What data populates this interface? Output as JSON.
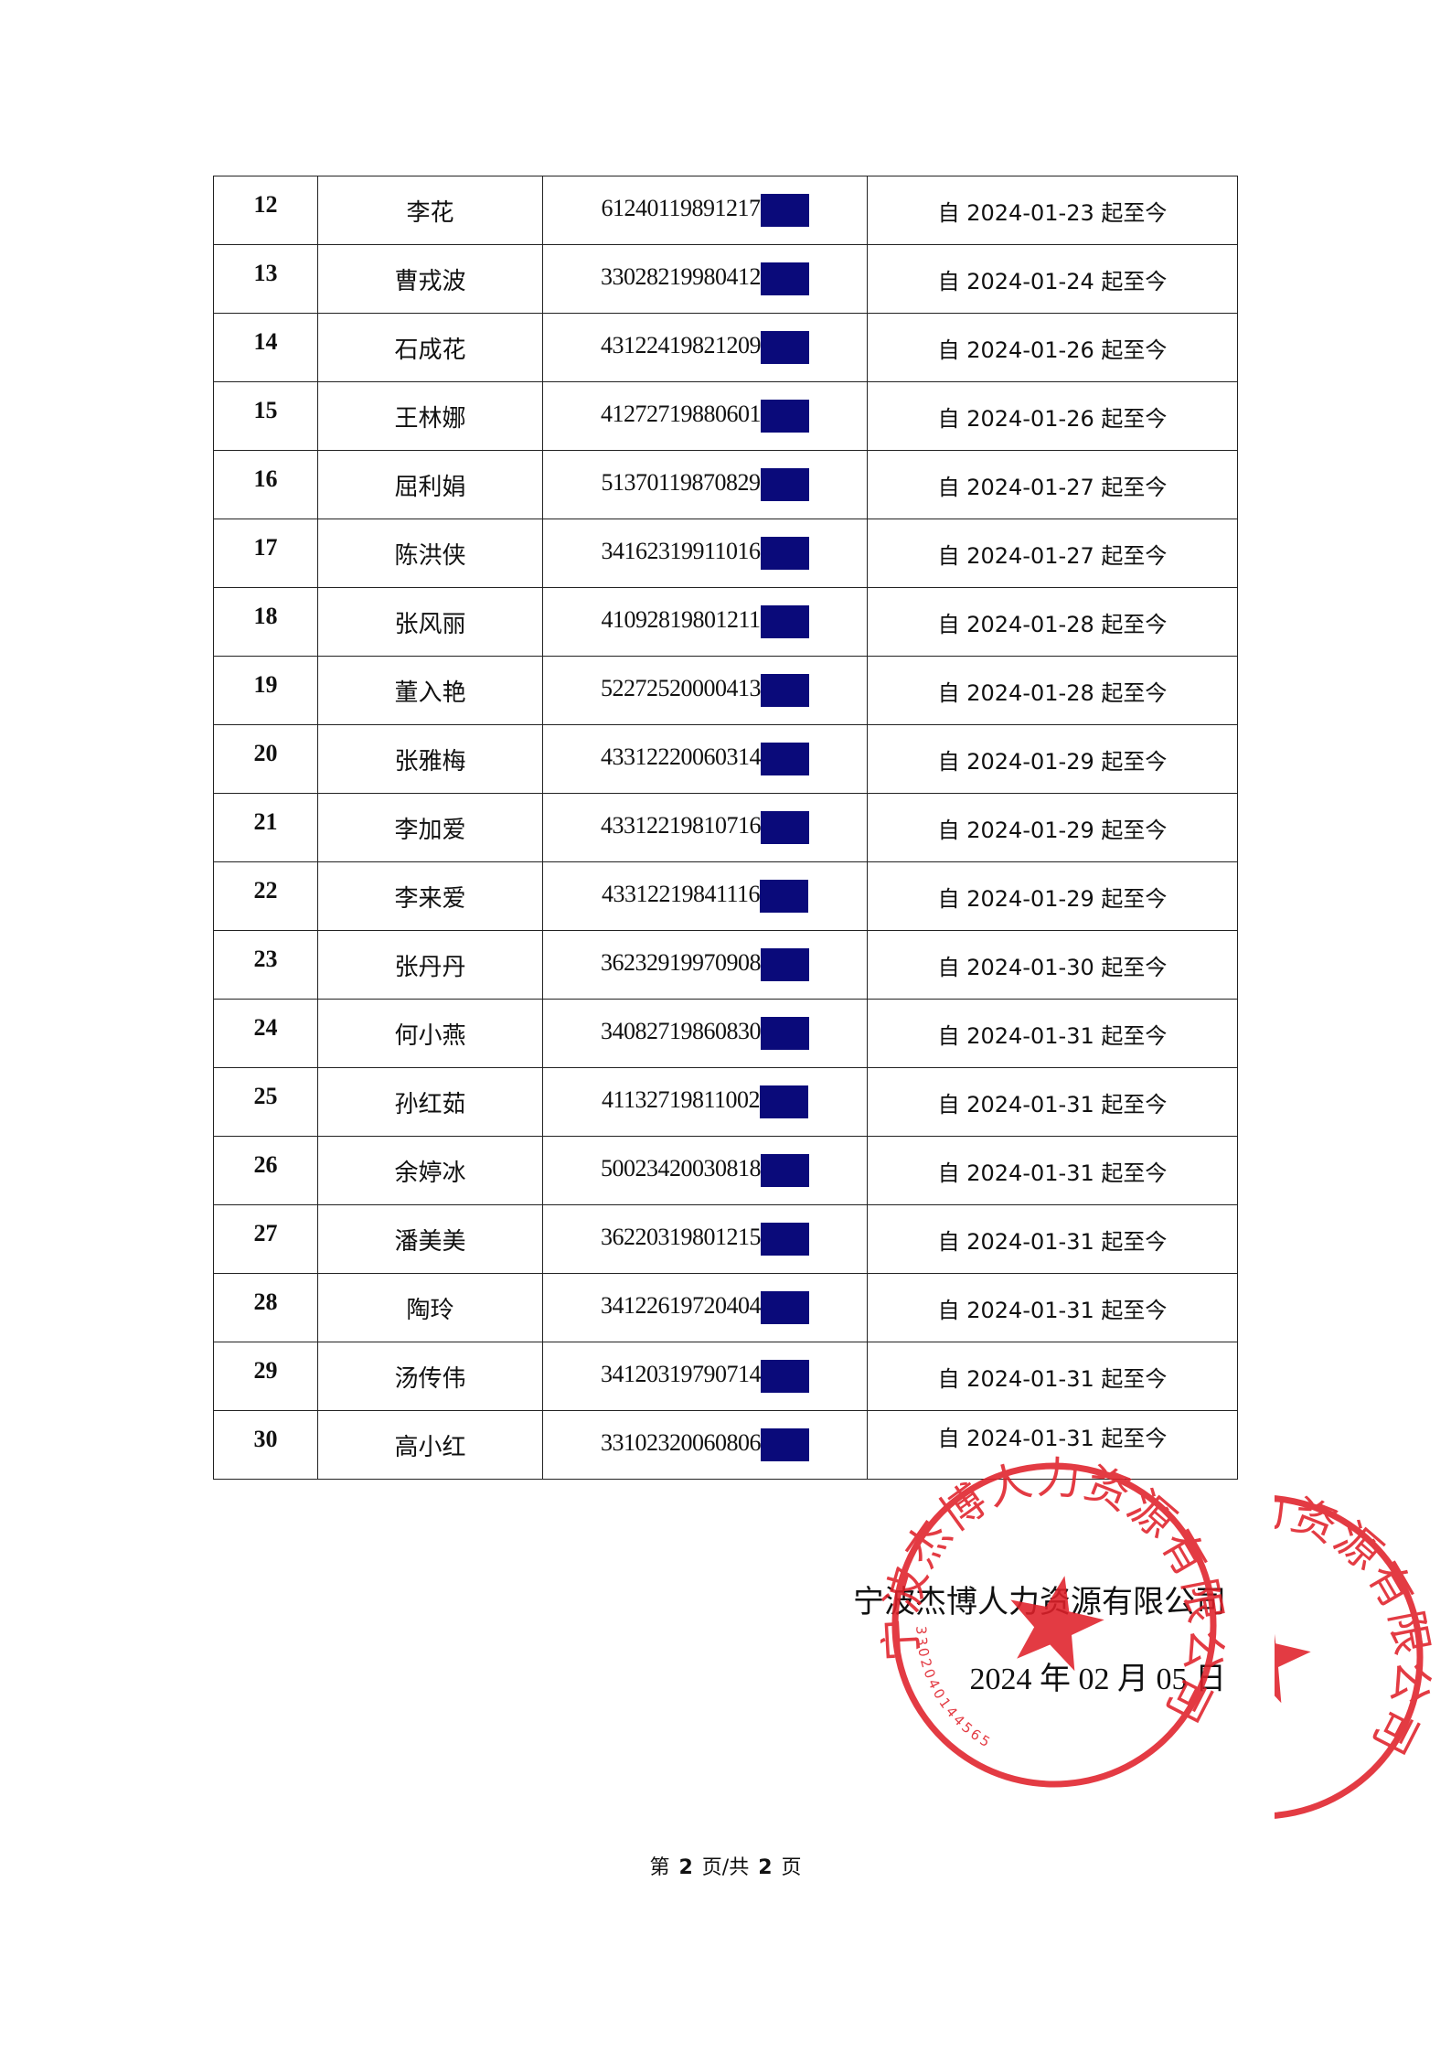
{
  "rows": [
    {
      "no": "12",
      "name": "李花",
      "id": "61240119891217",
      "date": "自 2024-01-23 起至今"
    },
    {
      "no": "13",
      "name": "曹戎波",
      "id": "33028219980412",
      "date": "自 2024-01-24 起至今"
    },
    {
      "no": "14",
      "name": "石成花",
      "id": "43122419821209",
      "date": "自 2024-01-26 起至今"
    },
    {
      "no": "15",
      "name": "王林娜",
      "id": "41272719880601",
      "date": "自 2024-01-26 起至今"
    },
    {
      "no": "16",
      "name": "屈利娟",
      "id": "51370119870829",
      "date": "自 2024-01-27 起至今"
    },
    {
      "no": "17",
      "name": "陈洪侠",
      "id": "34162319911016",
      "date": "自 2024-01-27 起至今"
    },
    {
      "no": "18",
      "name": "张风丽",
      "id": "41092819801211",
      "date": "自 2024-01-28 起至今"
    },
    {
      "no": "19",
      "name": "董入艳",
      "id": "52272520000413",
      "date": "自 2024-01-28 起至今"
    },
    {
      "no": "20",
      "name": "张雅梅",
      "id": "43312220060314",
      "date": "自 2024-01-29 起至今"
    },
    {
      "no": "21",
      "name": "李加爱",
      "id": "43312219810716",
      "date": "自 2024-01-29 起至今"
    },
    {
      "no": "22",
      "name": "李来爱",
      "id": "43312219841116",
      "date": "自 2024-01-29 起至今"
    },
    {
      "no": "23",
      "name": "张丹丹",
      "id": "36232919970908",
      "date": "自 2024-01-30 起至今"
    },
    {
      "no": "24",
      "name": "何小燕",
      "id": "34082719860830",
      "date": "自 2024-01-31 起至今"
    },
    {
      "no": "25",
      "name": "孙红茹",
      "id": "41132719811002",
      "date": "自 2024-01-31 起至今"
    },
    {
      "no": "26",
      "name": "余婷冰",
      "id": "50023420030818",
      "date": "自 2024-01-31 起至今"
    },
    {
      "no": "27",
      "name": "潘美美",
      "id": "36220319801215",
      "date": "自 2024-01-31 起至今"
    },
    {
      "no": "28",
      "name": "陶玲",
      "id": "34122619720404",
      "date": "自 2024-01-31 起至今"
    },
    {
      "no": "29",
      "name": "汤传伟",
      "id": "34120319790714",
      "date": "自 2024-01-31 起至今"
    },
    {
      "no": "30",
      "name": "高小红",
      "id": "33102320060806",
      "date": "自 2024-01-31 起至今"
    }
  ],
  "signature": {
    "company": "宁波杰博人力资源有限公司",
    "date": "2024 年 02 月 05 日"
  },
  "stamp": {
    "text": "宁波杰博人力资源有限公司",
    "code": "3302040144565",
    "color": "#e0202a"
  },
  "mask_color": "#0a0a7a",
  "footer": {
    "prefix": "第",
    "page": "2",
    "middle": "页/共",
    "total": "2",
    "suffix": "页"
  }
}
